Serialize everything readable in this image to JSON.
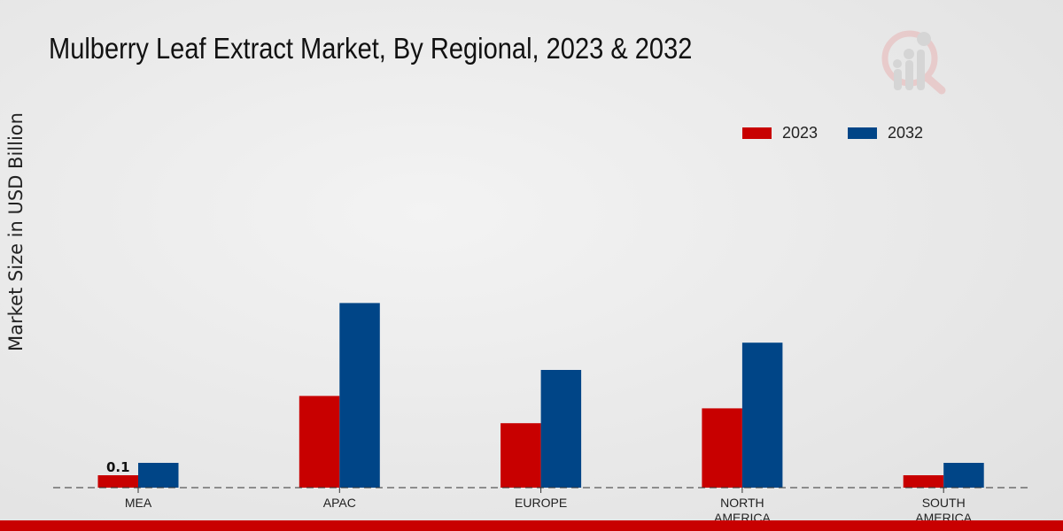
{
  "chart_data": {
    "type": "bar",
    "title": "Mulberry Leaf Extract Market, By Regional, 2023 & 2032",
    "xlabel": "",
    "ylabel": "Market Size in USD Billion",
    "categories": [
      "MEA",
      "APAC",
      "EUROPE",
      "NORTH\nAMERICA",
      "SOUTH\nAMERICA"
    ],
    "series": [
      {
        "name": "2023",
        "color": "#c80000",
        "values": [
          0.1,
          0.74,
          0.52,
          0.64,
          0.1
        ]
      },
      {
        "name": "2032",
        "color": "#004587",
        "values": [
          0.2,
          1.49,
          0.95,
          1.17,
          0.2
        ]
      }
    ],
    "data_labels": [
      {
        "category": "MEA",
        "series": "2023",
        "text": "0.1"
      }
    ],
    "ylim": [
      0,
      3.5
    ],
    "grid": false,
    "legend_position": "top-right"
  },
  "footer_bar_color": "#c80000"
}
